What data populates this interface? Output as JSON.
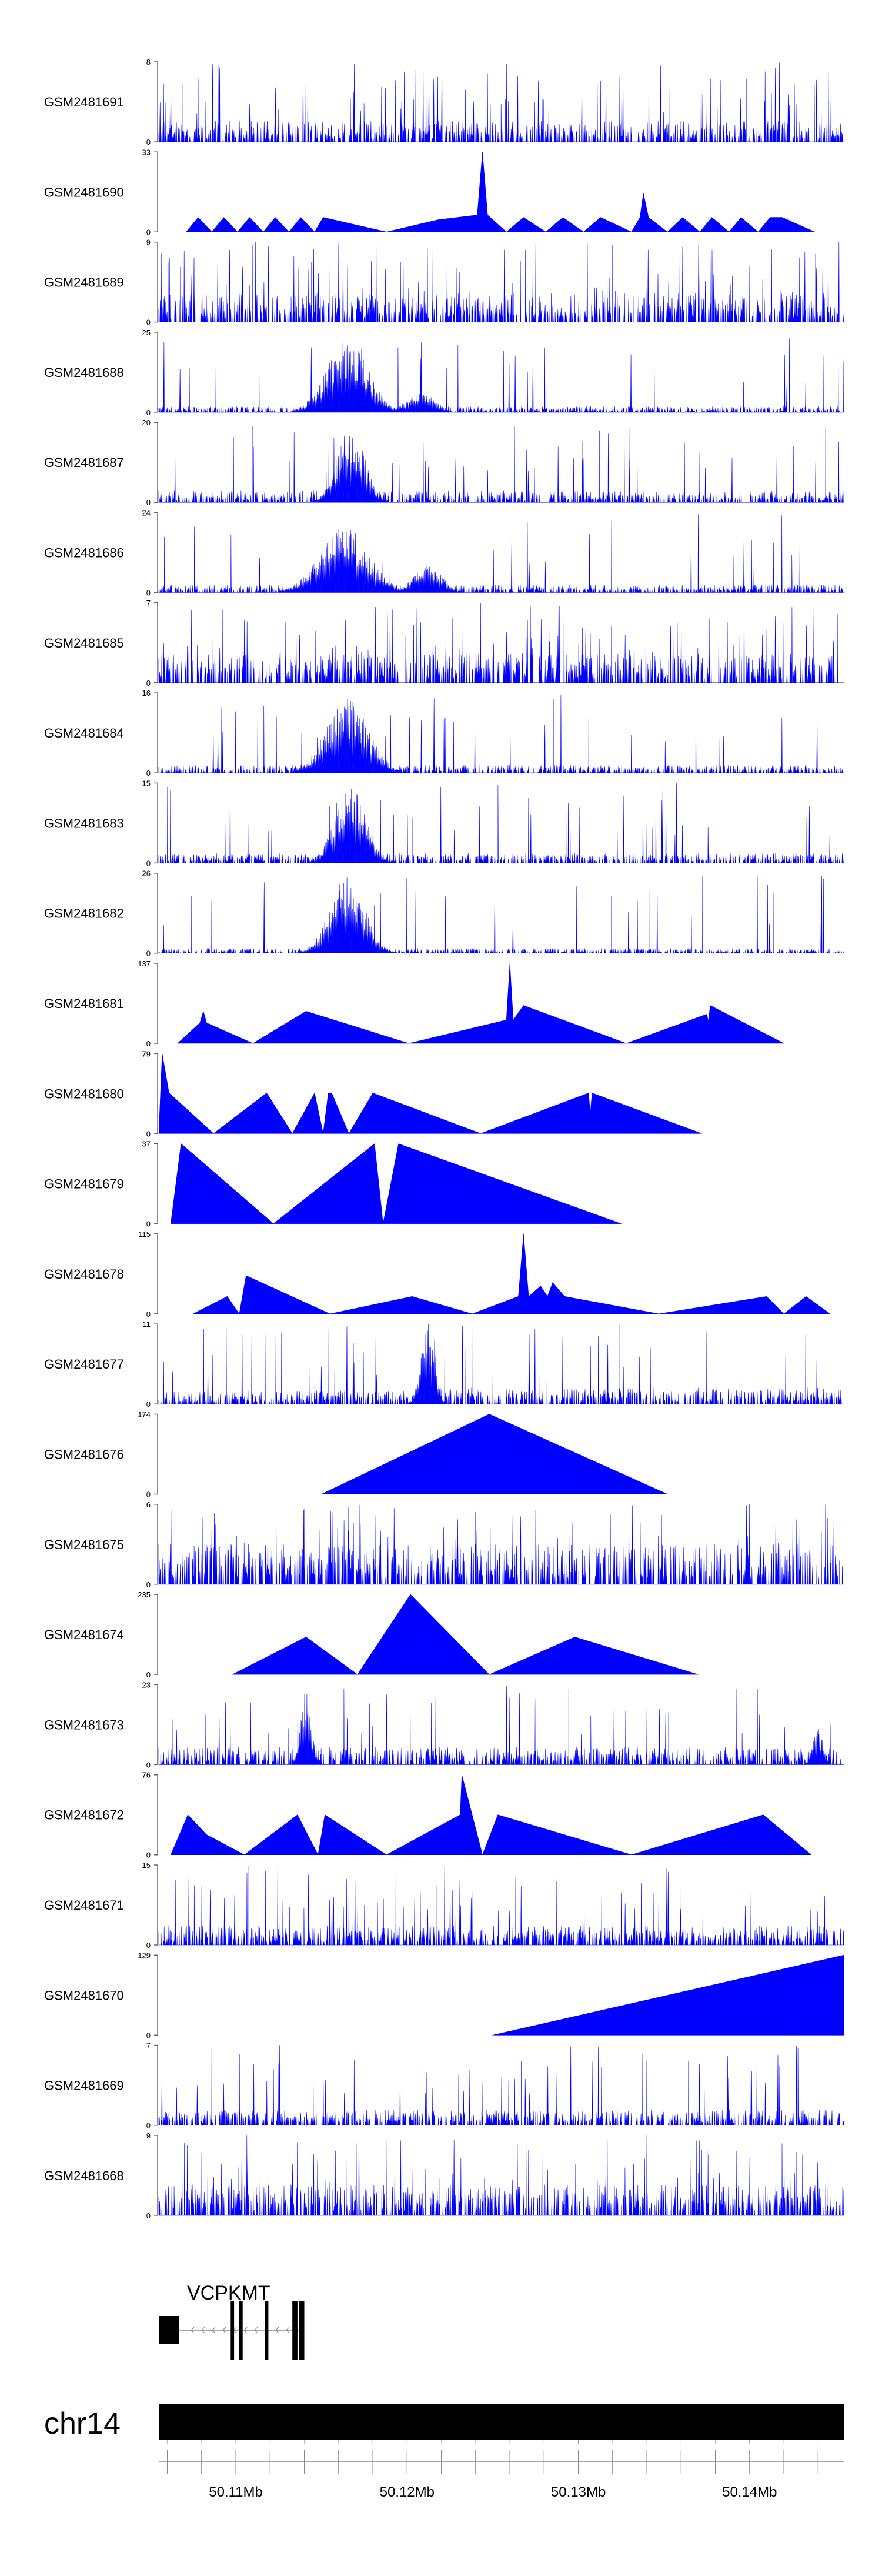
{
  "chart_data": {
    "type": "area",
    "title": "",
    "chromosome": "chr14",
    "x_range": [
      50.1055,
      50.1455
    ],
    "x_ticks": [
      {
        "value": 50.11,
        "label": "50.11Mb"
      },
      {
        "value": 50.12,
        "label": "50.12Mb"
      },
      {
        "value": 50.13,
        "label": "50.13Mb"
      },
      {
        "value": 50.14,
        "label": "50.14Mb"
      }
    ],
    "colors": {
      "fill": "#0000ff",
      "gene": "#000000",
      "ideogram": "#000000"
    },
    "tracks": [
      {
        "name": "GSM2481691",
        "ymax": 8,
        "kind": "dense",
        "seed": 11,
        "base": 0.22,
        "spike_prob": 0.14,
        "pattern": "uniform"
      },
      {
        "name": "GSM2481690",
        "ymax": 33,
        "kind": "sparse",
        "points": [
          [
            50.1071,
            0
          ],
          [
            50.1078,
            6
          ],
          [
            50.1086,
            0
          ],
          [
            50.1093,
            6
          ],
          [
            50.1101,
            0
          ],
          [
            50.1108,
            6
          ],
          [
            50.1116,
            0
          ],
          [
            50.1123,
            6
          ],
          [
            50.1131,
            0
          ],
          [
            50.1138,
            6
          ],
          [
            50.1146,
            0
          ],
          [
            50.1151,
            6
          ],
          [
            50.1188,
            0
          ],
          [
            50.1218,
            5
          ],
          [
            50.1241,
            7
          ],
          [
            50.1244,
            33
          ],
          [
            50.1247,
            7
          ],
          [
            50.1258,
            0
          ],
          [
            50.1268,
            6
          ],
          [
            50.1281,
            0
          ],
          [
            50.1291,
            6
          ],
          [
            50.1303,
            0
          ],
          [
            50.1313,
            6
          ],
          [
            50.1331,
            0
          ],
          [
            50.1336,
            6
          ],
          [
            50.1338,
            16
          ],
          [
            50.1341,
            6
          ],
          [
            50.1352,
            0
          ],
          [
            50.1361,
            6
          ],
          [
            50.1371,
            0
          ],
          [
            50.1378,
            6
          ],
          [
            50.1388,
            0
          ],
          [
            50.1395,
            6
          ],
          [
            50.1405,
            0
          ],
          [
            50.1412,
            6
          ],
          [
            50.1419,
            6
          ],
          [
            50.1438,
            0
          ]
        ]
      },
      {
        "name": "GSM2481689",
        "ymax": 9,
        "kind": "dense",
        "seed": 23,
        "base": 0.3,
        "spike_prob": 0.16,
        "pattern": "uniform"
      },
      {
        "name": "GSM2481688",
        "ymax": 25,
        "kind": "dense",
        "seed": 37,
        "base": 0.06,
        "spike_prob": 0.05,
        "pattern": "peak",
        "peak": [
          50.1165,
          0.0012,
          0.9
        ],
        "peak2": [
          50.1208,
          0.0008,
          0.25
        ]
      },
      {
        "name": "GSM2481687",
        "ymax": 20,
        "kind": "dense",
        "seed": 41,
        "base": 0.12,
        "spike_prob": 0.08,
        "pattern": "peak",
        "peak": [
          50.1167,
          0.0008,
          0.95
        ]
      },
      {
        "name": "GSM2481686",
        "ymax": 24,
        "kind": "dense",
        "seed": 53,
        "base": 0.08,
        "spike_prob": 0.06,
        "pattern": "peak",
        "peak": [
          50.1163,
          0.0014,
          0.85
        ],
        "peak2": [
          50.1212,
          0.0008,
          0.35
        ]
      },
      {
        "name": "GSM2481685",
        "ymax": 7,
        "kind": "dense",
        "seed": 61,
        "base": 0.3,
        "spike_prob": 0.18,
        "pattern": "uniform"
      },
      {
        "name": "GSM2481684",
        "ymax": 16,
        "kind": "dense",
        "seed": 71,
        "base": 0.08,
        "spike_prob": 0.06,
        "pattern": "peak",
        "peak": [
          50.1165,
          0.0012,
          0.95
        ]
      },
      {
        "name": "GSM2481683",
        "ymax": 15,
        "kind": "dense",
        "seed": 83,
        "base": 0.1,
        "spike_prob": 0.07,
        "pattern": "peak",
        "peak": [
          50.1167,
          0.0009,
          0.95
        ]
      },
      {
        "name": "GSM2481682",
        "ymax": 26,
        "kind": "dense",
        "seed": 97,
        "base": 0.05,
        "spike_prob": 0.04,
        "pattern": "peak",
        "peak": [
          50.1165,
          0.001,
          0.95
        ]
      },
      {
        "name": "GSM2481681",
        "ymax": 137,
        "kind": "sparse",
        "points": [
          [
            50.1066,
            0
          ],
          [
            50.1079,
            35
          ],
          [
            50.1081,
            55
          ],
          [
            50.1083,
            35
          ],
          [
            50.111,
            0
          ],
          [
            50.1141,
            55
          ],
          [
            50.1201,
            0
          ],
          [
            50.1258,
            40
          ],
          [
            50.126,
            137
          ],
          [
            50.1262,
            40
          ],
          [
            50.1268,
            65
          ],
          [
            50.1328,
            0
          ],
          [
            50.1375,
            50
          ],
          [
            50.1376,
            38
          ],
          [
            50.1377,
            65
          ],
          [
            50.142,
            0
          ]
        ]
      },
      {
        "name": "GSM2481680",
        "ymax": 79,
        "kind": "sparse",
        "points": [
          [
            50.1055,
            0
          ],
          [
            50.1057,
            79
          ],
          [
            50.1061,
            40
          ],
          [
            50.1087,
            0
          ],
          [
            50.1118,
            40
          ],
          [
            50.1133,
            0
          ],
          [
            50.1146,
            40
          ],
          [
            50.1151,
            0
          ],
          [
            50.1154,
            40
          ],
          [
            50.1156,
            40
          ],
          [
            50.1166,
            0
          ],
          [
            50.118,
            40
          ],
          [
            50.1243,
            0
          ],
          [
            50.1306,
            40
          ],
          [
            50.1307,
            20
          ],
          [
            50.1308,
            40
          ],
          [
            50.1372,
            0
          ]
        ]
      },
      {
        "name": "GSM2481679",
        "ymax": 37,
        "kind": "sparse",
        "points": [
          [
            50.1062,
            0
          ],
          [
            50.1068,
            37
          ],
          [
            50.1122,
            0
          ],
          [
            50.1181,
            37
          ],
          [
            50.1186,
            0
          ],
          [
            50.1195,
            37
          ],
          [
            50.1325,
            0
          ]
        ]
      },
      {
        "name": "GSM2481678",
        "ymax": 115,
        "kind": "sparse",
        "points": [
          [
            50.1075,
            0
          ],
          [
            50.1095,
            25
          ],
          [
            50.1102,
            0
          ],
          [
            50.1106,
            55
          ],
          [
            50.1155,
            0
          ],
          [
            50.1203,
            25
          ],
          [
            50.1238,
            0
          ],
          [
            50.1265,
            25
          ],
          [
            50.1268,
            115
          ],
          [
            50.1271,
            25
          ],
          [
            50.1278,
            40
          ],
          [
            50.1282,
            25
          ],
          [
            50.1285,
            45
          ],
          [
            50.1292,
            25
          ],
          [
            50.1347,
            0
          ],
          [
            50.141,
            25
          ],
          [
            50.142,
            0
          ],
          [
            50.1433,
            25
          ],
          [
            50.1447,
            0
          ]
        ]
      },
      {
        "name": "GSM2481677",
        "ymax": 11,
        "kind": "dense",
        "seed": 131,
        "base": 0.14,
        "spike_prob": 0.08,
        "pattern": "peak",
        "peak": [
          50.1212,
          0.0004,
          0.95
        ],
        "tail": 0.3
      },
      {
        "name": "GSM2481676",
        "ymax": 174,
        "kind": "sparse",
        "points": [
          [
            50.115,
            0
          ],
          [
            50.1248,
            174
          ],
          [
            50.1352,
            0
          ]
        ]
      },
      {
        "name": "GSM2481675",
        "ymax": 6,
        "kind": "dense",
        "seed": 151,
        "base": 0.42,
        "spike_prob": 0.18,
        "pattern": "uniform"
      },
      {
        "name": "GSM2481674",
        "ymax": 235,
        "kind": "sparse",
        "points": [
          [
            50.1098,
            0
          ],
          [
            50.1141,
            110
          ],
          [
            50.1171,
            0
          ],
          [
            50.1202,
            235
          ],
          [
            50.1248,
            0
          ],
          [
            50.1298,
            110
          ],
          [
            50.137,
            0
          ]
        ]
      },
      {
        "name": "GSM2481673",
        "ymax": 23,
        "kind": "dense",
        "seed": 173,
        "base": 0.18,
        "spike_prob": 0.08,
        "pattern": "peak",
        "peak": [
          50.1141,
          0.0003,
          0.95
        ],
        "peak2": [
          50.144,
          0.0003,
          0.45
        ]
      },
      {
        "name": "GSM2481672",
        "ymax": 76,
        "kind": "sparse",
        "points": [
          [
            50.1062,
            0
          ],
          [
            50.1072,
            38
          ],
          [
            50.1083,
            19
          ],
          [
            50.1105,
            0
          ],
          [
            50.1136,
            38
          ],
          [
            50.1148,
            0
          ],
          [
            50.1152,
            38
          ],
          [
            50.1188,
            0
          ],
          [
            50.1231,
            38
          ],
          [
            50.1232,
            76
          ],
          [
            50.1244,
            0
          ],
          [
            50.1253,
            38
          ],
          [
            50.1331,
            0
          ],
          [
            50.1408,
            38
          ],
          [
            50.1436,
            0
          ]
        ]
      },
      {
        "name": "GSM2481671",
        "ymax": 15,
        "kind": "dense",
        "seed": 191,
        "base": 0.2,
        "spike_prob": 0.12,
        "pattern": "uniform"
      },
      {
        "name": "GSM2481670",
        "ymax": 129,
        "kind": "sparse",
        "points": [
          [
            50.125,
            0
          ],
          [
            50.1455,
            129
          ],
          [
            50.1455,
            0
          ]
        ]
      },
      {
        "name": "GSM2481669",
        "ymax": 7,
        "kind": "dense",
        "seed": 211,
        "base": 0.16,
        "spike_prob": 0.1,
        "pattern": "uniform"
      },
      {
        "name": "GSM2481668",
        "ymax": 9,
        "kind": "dense",
        "seed": 223,
        "base": 0.32,
        "spike_prob": 0.14,
        "pattern": "uniform"
      }
    ],
    "gene": {
      "name": "VCPKMT",
      "start": 50.1055,
      "end": 50.114,
      "strand": "-",
      "exons": [
        [
          50.1055,
          50.1067
        ],
        [
          50.1097,
          50.1099
        ],
        [
          50.1102,
          50.1104
        ],
        [
          50.1117,
          50.1119
        ],
        [
          50.1133,
          50.1136
        ],
        [
          50.1137,
          50.114
        ]
      ]
    }
  }
}
